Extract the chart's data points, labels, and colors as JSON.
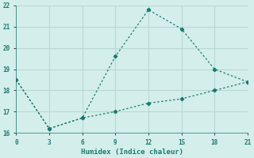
{
  "xlabel": "Humidex (Indice chaleur)",
  "line1_x": [
    0,
    3,
    6,
    9,
    12,
    15,
    18,
    21
  ],
  "line1_y": [
    18.5,
    16.2,
    16.7,
    19.6,
    21.8,
    20.9,
    19.0,
    18.4
  ],
  "line2_x": [
    0,
    3,
    6,
    9,
    12,
    15,
    18,
    21
  ],
  "line2_y": [
    18.5,
    16.2,
    16.7,
    17.0,
    17.4,
    17.6,
    18.0,
    18.4
  ],
  "line_color": "#1a7a6e",
  "bg_color": "#d4eeeb",
  "grid_color": "#b8d8d4",
  "xlim": [
    0,
    21
  ],
  "ylim": [
    16,
    22
  ],
  "xticks": [
    0,
    3,
    6,
    9,
    12,
    15,
    18,
    21
  ],
  "yticks": [
    16,
    17,
    18,
    19,
    20,
    21,
    22
  ]
}
